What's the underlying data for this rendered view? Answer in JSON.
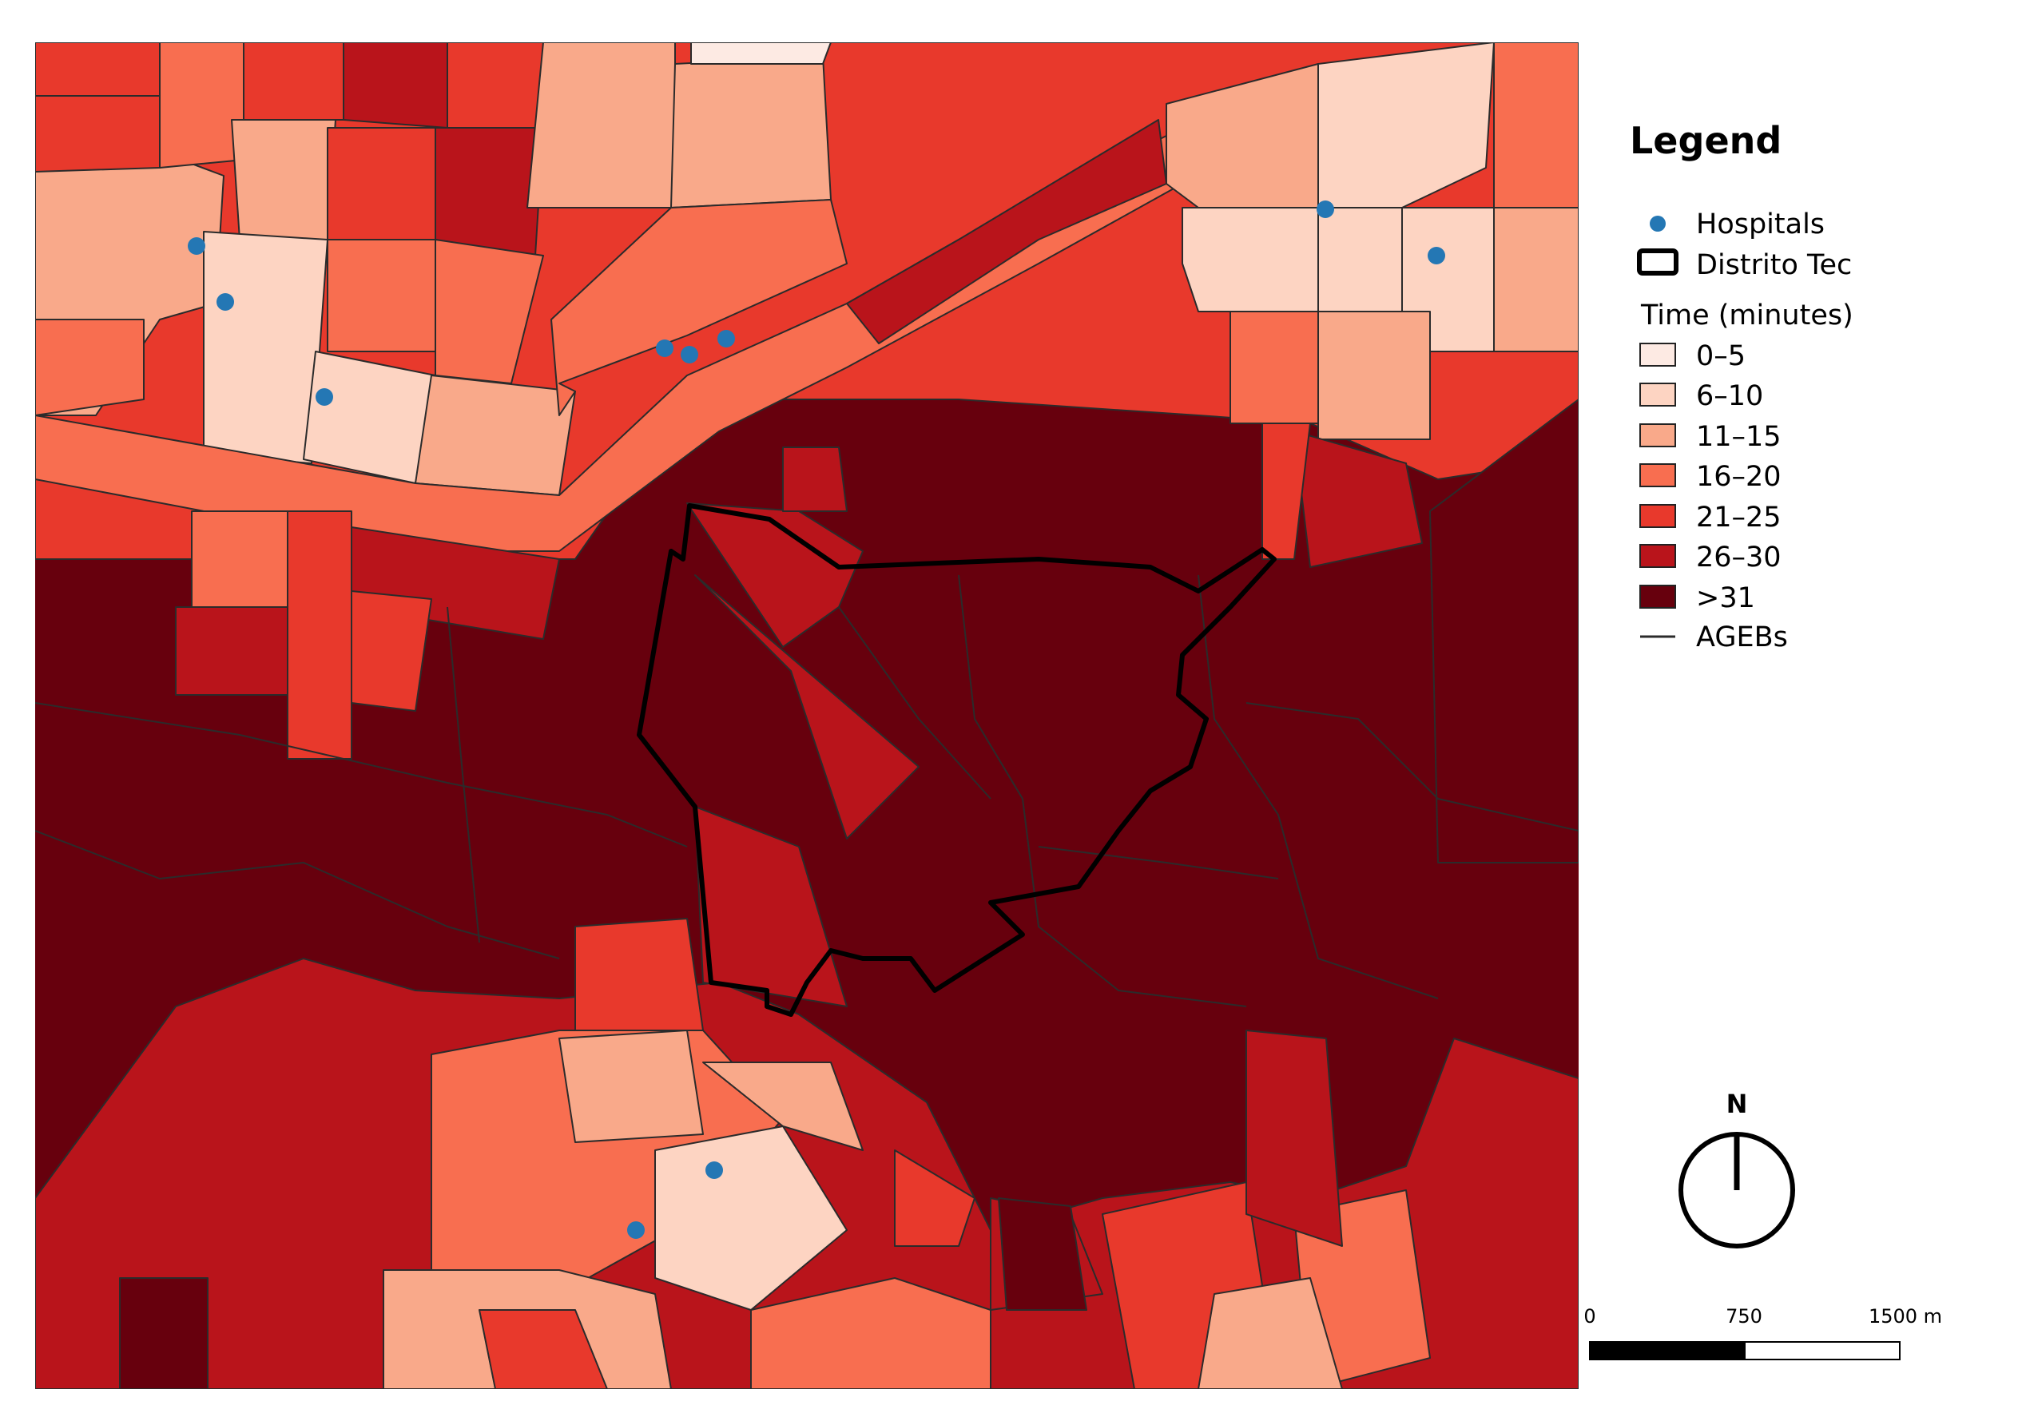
{
  "legend": {
    "title": "Legend",
    "hospitals_label": "Hospitals",
    "district_label": "Distrito Tec",
    "time_heading": "Time (minutes)",
    "classes": [
      {
        "label": "0–5",
        "color": "#fdeae3"
      },
      {
        "label": "6–10",
        "color": "#fdd4c2"
      },
      {
        "label": "11–15",
        "color": "#f9a98a"
      },
      {
        "label": "16–20",
        "color": "#f86e50"
      },
      {
        "label": "21–25",
        "color": "#e8392c"
      },
      {
        "label": "26–30",
        "color": "#b9141b"
      },
      {
        "label": ">31",
        "color": "#67000d"
      }
    ],
    "ageb_label": "AGEBs"
  },
  "north_arrow": {
    "label": "N"
  },
  "scale_bar": {
    "tick_labels": [
      "0",
      "750",
      "1500 m"
    ]
  },
  "colors": {
    "hospital": "#2477b4",
    "ageb_outline": "#2b2b2b",
    "district_outline": "#000000"
  }
}
